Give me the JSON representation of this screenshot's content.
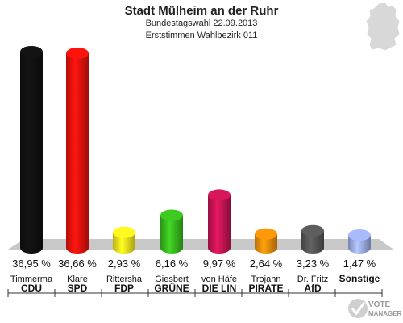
{
  "header": {
    "title": "Stadt Mülheim an der Ruhr",
    "subtitle": "Bundestagswahl 22.09.2013",
    "subtitle2": "Erststimmen Wahlbezirk 011"
  },
  "logo": {
    "line1": "VOTE",
    "line2": "MANAGER"
  },
  "colors": {
    "floor": "#c8c8c8",
    "axis": "#333333"
  },
  "chart_data": {
    "type": "bar",
    "title": "Stadt Mülheim an der Ruhr",
    "unit": "%",
    "categories": [
      "CDU",
      "SPD",
      "FDP",
      "GRÜNE",
      "DIE LIN",
      "PIRATE",
      "AfD",
      "Sonstige"
    ],
    "candidates": [
      "Timmerma",
      "Klare",
      "Rittersha",
      "Giesbert",
      "von Häfe",
      "Trojahn",
      "Dr. Fritz",
      ""
    ],
    "values": [
      36.95,
      36.66,
      2.93,
      6.16,
      9.97,
      2.64,
      3.23,
      1.47
    ],
    "labels": [
      "36,95 %",
      "36,66 %",
      "2,93 %",
      "6,16 %",
      "9,97 %",
      "2,64 %",
      "3,23 %",
      "1,47 %"
    ],
    "colors": [
      "#111111",
      "#e8120c",
      "#f2e21a",
      "#38b81e",
      "#c41452",
      "#f08a0a",
      "#555555",
      "#9aaae6"
    ]
  }
}
